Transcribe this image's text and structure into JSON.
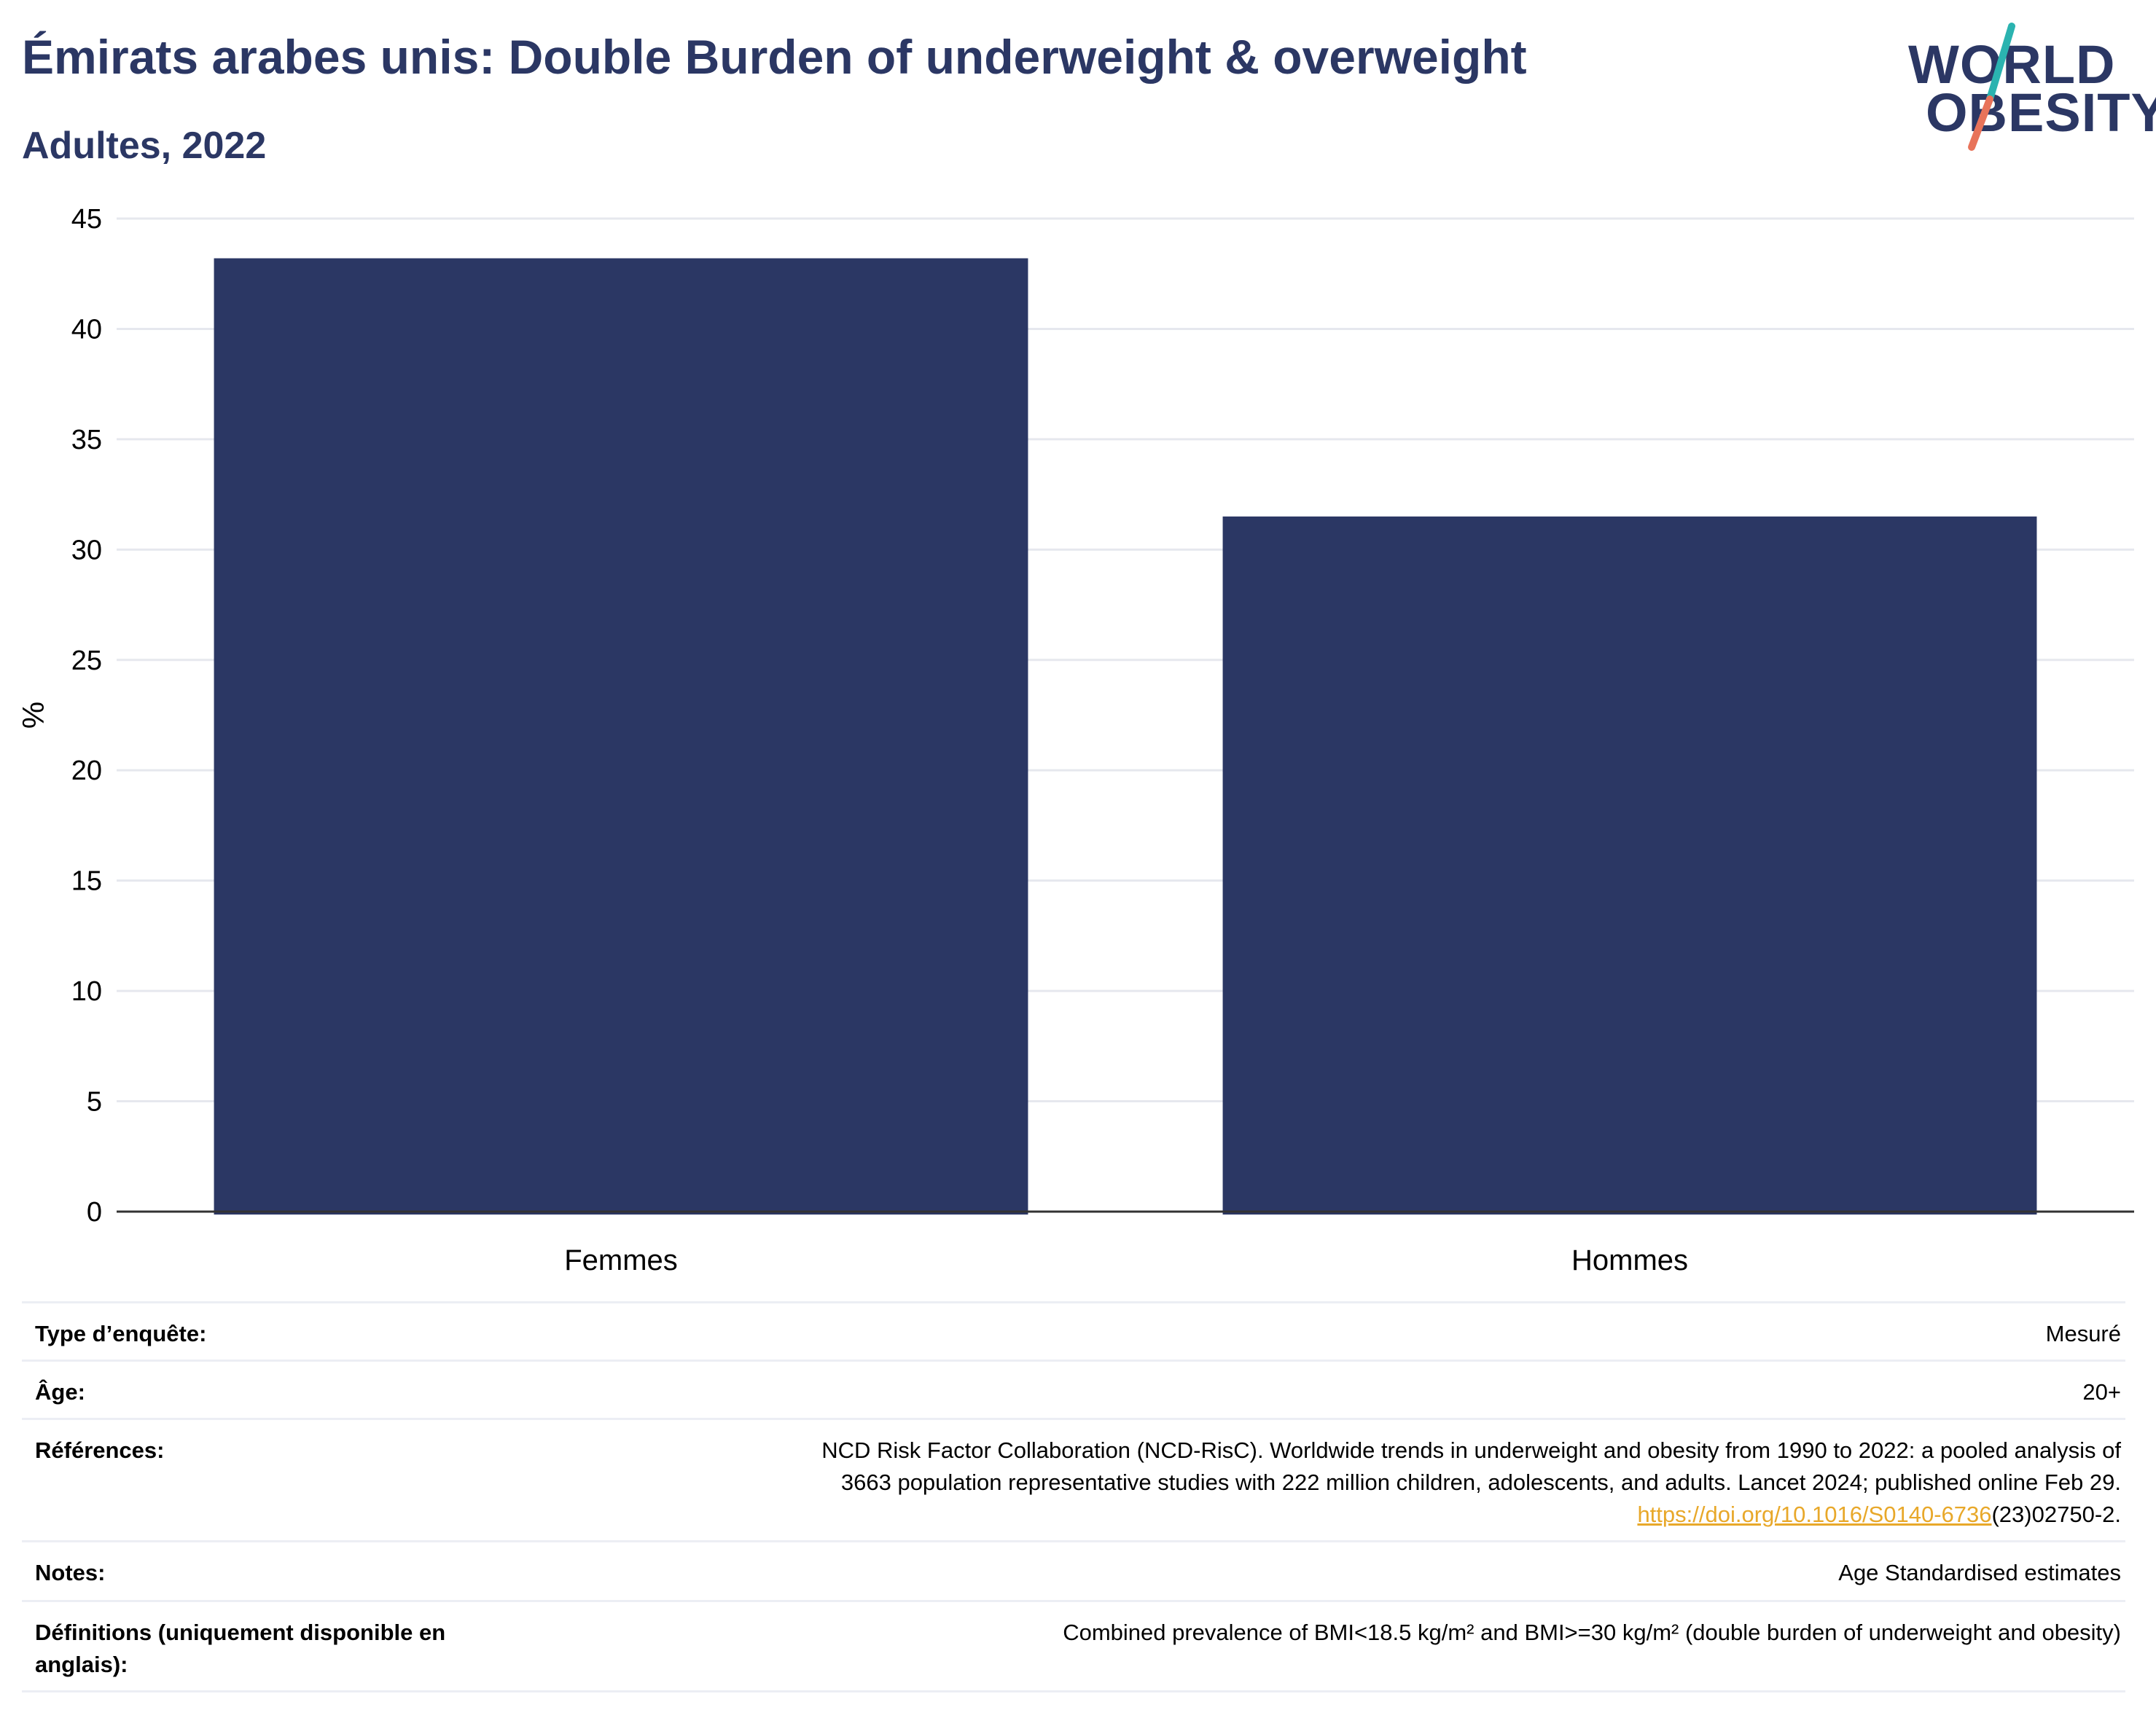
{
  "header": {
    "title": "Émirats arabes unis: Double Burden of underweight & overweight",
    "subtitle": "Adultes, 2022"
  },
  "logo": {
    "line1": "WORLD",
    "line2": "OBESITY",
    "colors": {
      "text": "#2b3764",
      "slash_top": "#2bb3b0",
      "slash_bottom": "#e8735a"
    }
  },
  "chart_data": {
    "type": "bar",
    "categories": [
      "Femmes",
      "Hommes"
    ],
    "values": [
      43.2,
      31.5
    ],
    "ylabel": "%",
    "ylim": [
      0,
      45
    ],
    "yticks": [
      0,
      5,
      10,
      15,
      20,
      25,
      30,
      35,
      40,
      45
    ],
    "grid": true,
    "bar_color": "#2b3764"
  },
  "info": {
    "survey_type": {
      "label": "Type d’enquête:",
      "value": "Mesuré"
    },
    "age": {
      "label": "Âge:",
      "value": "20+"
    },
    "references": {
      "label": "Références:",
      "line1": "NCD Risk Factor Collaboration (NCD-RisC). Worldwide trends in underweight and obesity from 1990 to 2022: a pooled analysis of",
      "line2": "3663 population representative studies with 222 million children, adolescents, and adults. Lancet 2024; published online Feb 29.",
      "link_text": "https://doi.org/10.1016/S0140-6736",
      "link_suffix": "(23)02750-2."
    },
    "notes": {
      "label": "Notes:",
      "value": "Age Standardised estimates"
    },
    "definitions": {
      "label": "Définitions (uniquement disponible en anglais):",
      "value": "Combined prevalence of BMI<18.5 kg/m² and BMI>=30 kg/m² (double burden of underweight and obesity)"
    }
  }
}
